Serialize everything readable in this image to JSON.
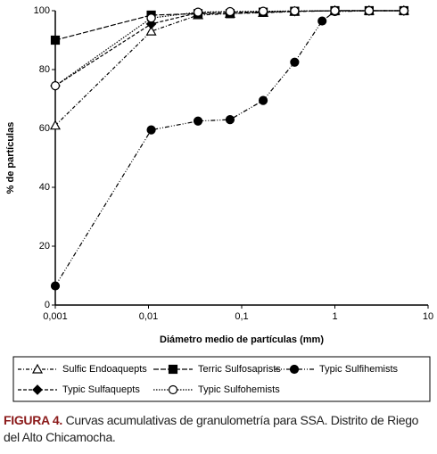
{
  "chart_data": {
    "type": "line",
    "xlabel": "Diámetro medio de partículas (mm)",
    "ylabel": "% de partículas",
    "xscale": "log",
    "xlim": [
      0.001,
      10
    ],
    "xticks": [
      {
        "value": 0.001,
        "label": "0,001"
      },
      {
        "value": 0.01,
        "label": "0,01"
      },
      {
        "value": 0.1,
        "label": "0,1"
      },
      1,
      10
    ],
    "ylim": [
      0,
      100
    ],
    "yticks": [
      0,
      20,
      40,
      60,
      80,
      100
    ],
    "series": [
      {
        "name": "Sulfic Endoaquepts",
        "color": "#000000",
        "marker": "triangle-open",
        "x": [
          0.001,
          0.0107,
          0.034,
          0.075,
          0.17,
          0.37,
          1,
          2.33,
          5.5
        ],
        "values": [
          61,
          93,
          98.5,
          99,
          99.3,
          99.7,
          100,
          100,
          100
        ]
      },
      {
        "name": "Terric Sulfosaprists",
        "color": "#000000",
        "marker": "square",
        "x": [
          0.001,
          0.0107,
          0.034,
          0.075,
          0.17,
          0.37,
          1,
          2.33,
          5.5
        ],
        "values": [
          90,
          98.5,
          99,
          99,
          99.5,
          99.8,
          100,
          100,
          100
        ]
      },
      {
        "name": "Typic Sulfihemists",
        "color": "#000000",
        "marker": "circle",
        "x": [
          0.001,
          0.0107,
          0.034,
          0.075,
          0.17,
          0.37,
          0.73,
          1,
          2.33,
          5.5
        ],
        "values": [
          6.5,
          59.5,
          62.5,
          63,
          69.5,
          82.5,
          96.5,
          99.7,
          100,
          100
        ]
      },
      {
        "name": "Typic Sulfaquepts",
        "color": "#000000",
        "marker": "diamond",
        "x": [
          0.001,
          0.0107,
          0.034,
          0.075,
          0.17,
          0.37,
          1,
          2.33,
          5.5
        ],
        "values": [
          74.5,
          95.5,
          99.3,
          99.5,
          99.6,
          99.8,
          100,
          100,
          100
        ]
      },
      {
        "name": "Typic Sulfohemists",
        "color": "#000000",
        "marker": "circle-open",
        "x": [
          0.001,
          0.0107,
          0.034,
          0.075,
          0.17,
          0.37,
          1,
          2.33,
          5.5
        ],
        "values": [
          74.5,
          97.5,
          99.5,
          99.7,
          99.8,
          99.9,
          100,
          100,
          100
        ]
      }
    ],
    "caption_label": "FIGURA 4.",
    "caption": "Curvas acumulativas de granulometría para SSA. Distrito de Riego del Alto Chicamocha."
  }
}
